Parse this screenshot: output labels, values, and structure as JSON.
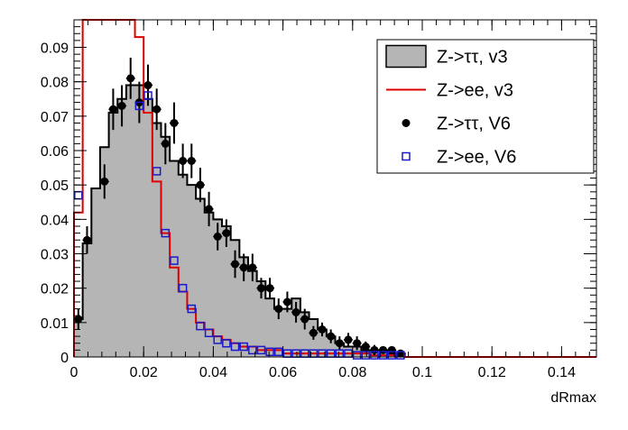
{
  "chart_data": {
    "type": "histogram",
    "xlabel": "dRmax",
    "ylabel": "",
    "xlim": [
      0,
      0.15
    ],
    "ylim": [
      0,
      0.098
    ],
    "x_ticks": [
      0,
      0.02,
      0.04,
      0.06,
      0.08,
      0.1,
      0.12,
      0.14
    ],
    "x_tick_labels": [
      "0",
      "0.02",
      "0.04",
      "0.06",
      "0.08",
      "0.1",
      "0.12",
      "0.14"
    ],
    "y_ticks": [
      0,
      0.01,
      0.02,
      0.03,
      0.04,
      0.05,
      0.06,
      0.07,
      0.08,
      0.09
    ],
    "y_tick_labels": [
      "0",
      "0.01",
      "0.02",
      "0.03",
      "0.04",
      "0.05",
      "0.06",
      "0.07",
      "0.08",
      "0.09"
    ],
    "bin_width": 0.0025,
    "legend": {
      "placement": "top-right",
      "entries": [
        {
          "label": "Z->ττ, v3",
          "style": "filled-hist"
        },
        {
          "label": "Z->ee, v3",
          "style": "line"
        },
        {
          "label": "Z->ττ, V6",
          "style": "marker-dot"
        },
        {
          "label": "Z->ee, V6",
          "style": "marker-open-square"
        }
      ]
    },
    "series": [
      {
        "name": "Z->ττ, v3",
        "style": "filled-hist",
        "fill": "#b5b5b5",
        "edge": "#000000",
        "values": [
          0.011,
          0.033,
          0.049,
          0.061,
          0.071,
          0.075,
          0.079,
          0.079,
          0.075,
          0.068,
          0.064,
          0.057,
          0.053,
          0.05,
          0.046,
          0.042,
          0.04,
          0.038,
          0.034,
          0.029,
          0.025,
          0.022,
          0.017,
          0.014,
          0.014,
          0.017,
          0.013,
          0.011,
          0.008,
          0.006,
          0.004,
          0.003,
          0.003,
          0.002,
          0.002,
          0.002,
          0.001,
          0.001,
          0.0
        ]
      },
      {
        "name": "Z->ee, v3",
        "style": "line",
        "color": "#dd0000",
        "values": [
          0.042,
          0.098,
          0.098,
          0.098,
          0.098,
          0.098,
          0.098,
          0.093,
          0.071,
          0.051,
          0.036,
          0.026,
          0.019,
          0.014,
          0.01,
          0.008,
          0.006,
          0.005,
          0.004,
          0.003,
          0.003,
          0.002,
          0.002,
          0.002,
          0.001,
          0.001,
          0.001,
          0.001,
          0.001,
          0.001,
          0.001,
          0.001,
          0.001,
          0.001,
          0.0005,
          0.0005,
          0.0005,
          0.0005,
          0.0
        ]
      },
      {
        "name": "Z->ττ, V6",
        "style": "marker-dot",
        "color": "#000000",
        "points": [
          {
            "x": 0.00125,
            "y": 0.011,
            "err": 0.003
          },
          {
            "x": 0.00375,
            "y": 0.034,
            "err": 0.004
          },
          {
            "x": 0.00875,
            "y": 0.051,
            "err": 0.005
          },
          {
            "x": 0.01125,
            "y": 0.072,
            "err": 0.006
          },
          {
            "x": 0.01375,
            "y": 0.073,
            "err": 0.006
          },
          {
            "x": 0.01625,
            "y": 0.081,
            "err": 0.006
          },
          {
            "x": 0.01875,
            "y": 0.074,
            "err": 0.006
          },
          {
            "x": 0.02125,
            "y": 0.079,
            "err": 0.006
          },
          {
            "x": 0.02375,
            "y": 0.072,
            "err": 0.006
          },
          {
            "x": 0.02625,
            "y": 0.062,
            "err": 0.006
          },
          {
            "x": 0.02875,
            "y": 0.068,
            "err": 0.006
          },
          {
            "x": 0.03125,
            "y": 0.057,
            "err": 0.005
          },
          {
            "x": 0.03375,
            "y": 0.057,
            "err": 0.005
          },
          {
            "x": 0.03625,
            "y": 0.05,
            "err": 0.005
          },
          {
            "x": 0.03875,
            "y": 0.043,
            "err": 0.005
          },
          {
            "x": 0.04125,
            "y": 0.035,
            "err": 0.004
          },
          {
            "x": 0.04375,
            "y": 0.036,
            "err": 0.004
          },
          {
            "x": 0.04625,
            "y": 0.027,
            "err": 0.004
          },
          {
            "x": 0.04875,
            "y": 0.026,
            "err": 0.004
          },
          {
            "x": 0.05125,
            "y": 0.026,
            "err": 0.004
          },
          {
            "x": 0.05375,
            "y": 0.02,
            "err": 0.003
          },
          {
            "x": 0.05625,
            "y": 0.02,
            "err": 0.003
          },
          {
            "x": 0.05875,
            "y": 0.014,
            "err": 0.003
          },
          {
            "x": 0.06125,
            "y": 0.016,
            "err": 0.003
          },
          {
            "x": 0.06375,
            "y": 0.013,
            "err": 0.003
          },
          {
            "x": 0.06625,
            "y": 0.011,
            "err": 0.003
          },
          {
            "x": 0.06875,
            "y": 0.007,
            "err": 0.002
          },
          {
            "x": 0.07125,
            "y": 0.008,
            "err": 0.002
          },
          {
            "x": 0.07375,
            "y": 0.006,
            "err": 0.002
          },
          {
            "x": 0.07625,
            "y": 0.004,
            "err": 0.002
          },
          {
            "x": 0.07875,
            "y": 0.005,
            "err": 0.002
          },
          {
            "x": 0.08125,
            "y": 0.004,
            "err": 0.002
          },
          {
            "x": 0.08375,
            "y": 0.003,
            "err": 0.0015
          },
          {
            "x": 0.08625,
            "y": 0.002,
            "err": 0.0015
          },
          {
            "x": 0.08875,
            "y": 0.002,
            "err": 0.001
          },
          {
            "x": 0.09125,
            "y": 0.002,
            "err": 0.001
          },
          {
            "x": 0.09375,
            "y": 0.001,
            "err": 0.001
          }
        ]
      },
      {
        "name": "Z->ee, V6",
        "style": "marker-open-square",
        "color": "#1a1acc",
        "points": [
          {
            "x": 0.00125,
            "y": 0.047
          },
          {
            "x": 0.01875,
            "y": 0.073
          },
          {
            "x": 0.02125,
            "y": 0.076
          },
          {
            "x": 0.02375,
            "y": 0.054
          },
          {
            "x": 0.02625,
            "y": 0.036
          },
          {
            "x": 0.02875,
            "y": 0.028
          },
          {
            "x": 0.03125,
            "y": 0.02
          },
          {
            "x": 0.03375,
            "y": 0.014
          },
          {
            "x": 0.03625,
            "y": 0.009
          },
          {
            "x": 0.03875,
            "y": 0.007
          },
          {
            "x": 0.04125,
            "y": 0.005
          },
          {
            "x": 0.04375,
            "y": 0.004
          },
          {
            "x": 0.04625,
            "y": 0.003
          },
          {
            "x": 0.04875,
            "y": 0.003
          },
          {
            "x": 0.05125,
            "y": 0.002
          },
          {
            "x": 0.05375,
            "y": 0.002
          },
          {
            "x": 0.05625,
            "y": 0.0015
          },
          {
            "x": 0.05875,
            "y": 0.0015
          },
          {
            "x": 0.06125,
            "y": 0.001
          },
          {
            "x": 0.06375,
            "y": 0.001
          },
          {
            "x": 0.06625,
            "y": 0.001
          },
          {
            "x": 0.06875,
            "y": 0.001
          },
          {
            "x": 0.07125,
            "y": 0.001
          },
          {
            "x": 0.07375,
            "y": 0.001
          },
          {
            "x": 0.07625,
            "y": 0.001
          },
          {
            "x": 0.07875,
            "y": 0.001
          },
          {
            "x": 0.08125,
            "y": 0.0005
          },
          {
            "x": 0.08375,
            "y": 0.0005
          },
          {
            "x": 0.08625,
            "y": 0.0005
          },
          {
            "x": 0.08875,
            "y": 0.0005
          },
          {
            "x": 0.09125,
            "y": 0.0005
          },
          {
            "x": 0.09375,
            "y": 0.0005
          }
        ]
      }
    ]
  }
}
